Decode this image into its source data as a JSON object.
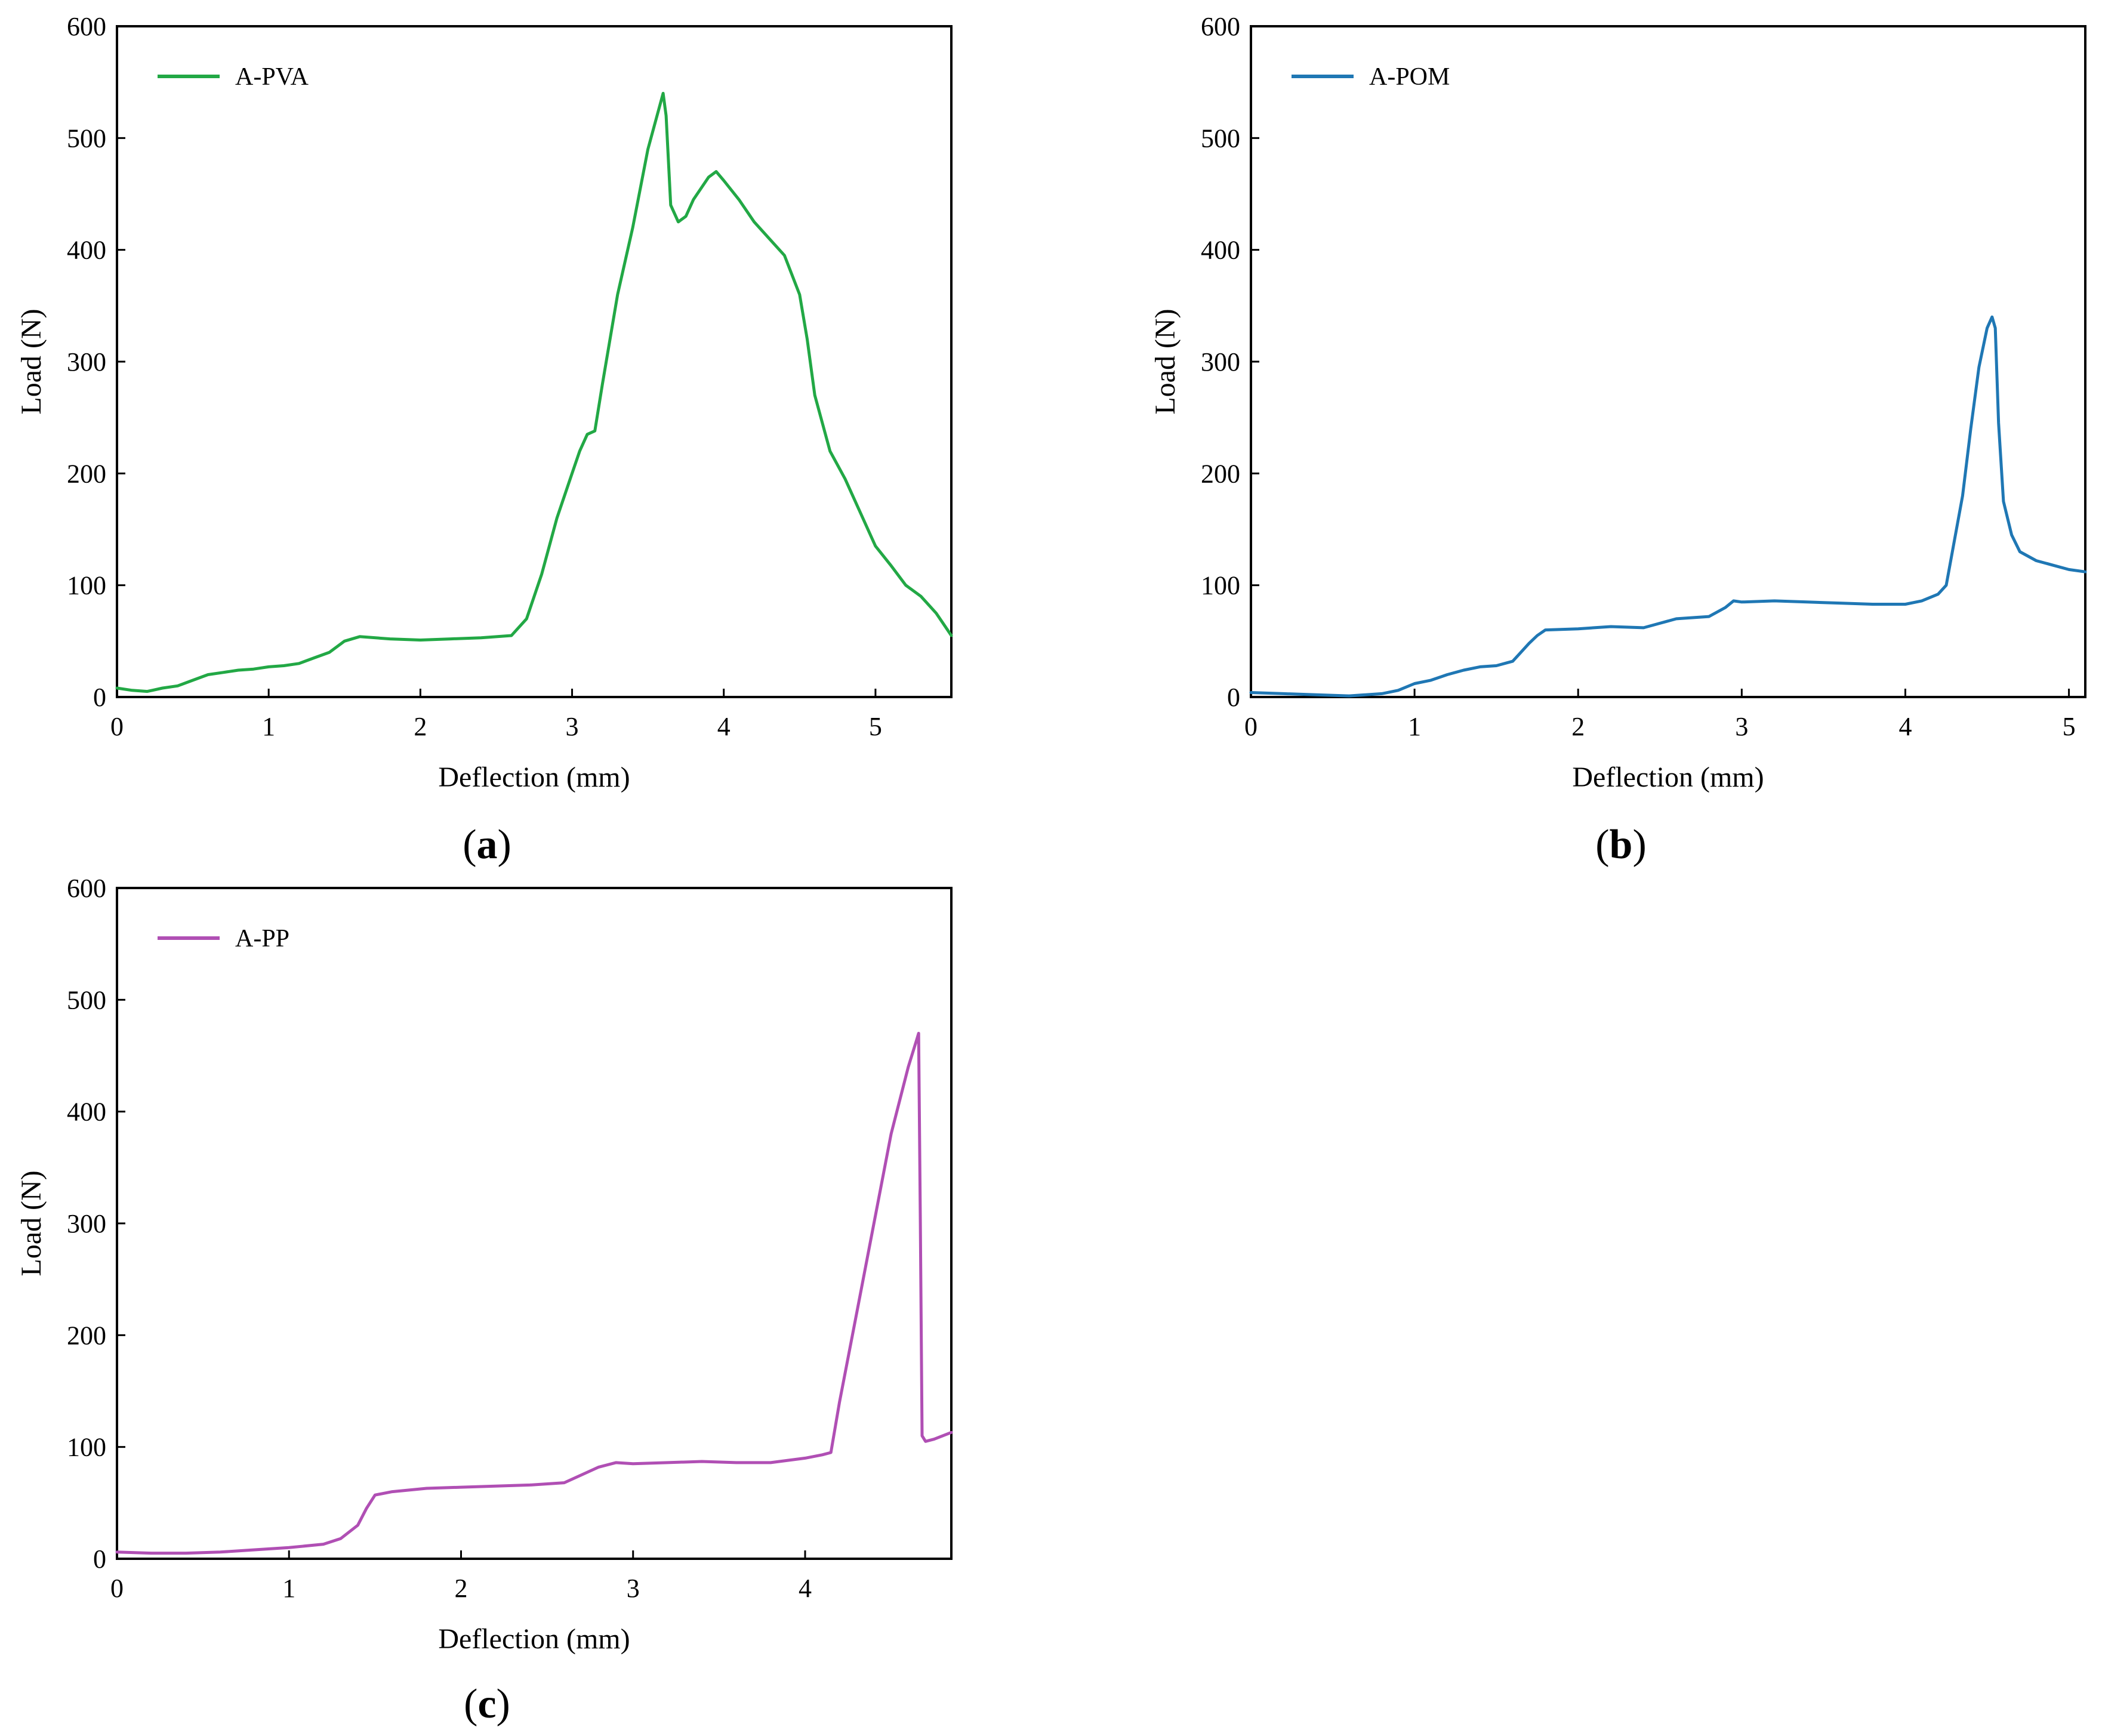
{
  "chart_data": [
    {
      "type": "line",
      "panel_label": "a",
      "xlabel": "Deflection (mm)",
      "ylabel": "Load (N)",
      "xlim": [
        0,
        5.5
      ],
      "ylim": [
        0,
        600
      ],
      "xticks": [
        "0",
        "1",
        "2",
        "3",
        "4",
        "5"
      ],
      "yticks": [
        "0",
        "100",
        "200",
        "300",
        "400",
        "500",
        "600"
      ],
      "grid": false,
      "legend_position": "top-left",
      "series": [
        {
          "name": "A-PVA",
          "color": "#22a845",
          "x": [
            0,
            0.1,
            0.2,
            0.3,
            0.4,
            0.5,
            0.6,
            0.7,
            0.8,
            0.9,
            1.0,
            1.1,
            1.2,
            1.3,
            1.4,
            1.5,
            1.6,
            1.8,
            2.0,
            2.2,
            2.4,
            2.6,
            2.7,
            2.8,
            2.9,
            3.0,
            3.05,
            3.1,
            3.15,
            3.2,
            3.3,
            3.4,
            3.5,
            3.58,
            3.6,
            3.62,
            3.65,
            3.7,
            3.75,
            3.8,
            3.9,
            3.95,
            4.0,
            4.1,
            4.2,
            4.3,
            4.4,
            4.5,
            4.55,
            4.6,
            4.7,
            4.8,
            4.9,
            5.0,
            5.1,
            5.2,
            5.3,
            5.4,
            5.45,
            5.5
          ],
          "y": [
            8,
            6,
            5,
            8,
            10,
            15,
            20,
            22,
            24,
            25,
            27,
            28,
            30,
            35,
            40,
            50,
            54,
            52,
            51,
            52,
            53,
            55,
            70,
            110,
            160,
            200,
            220,
            235,
            238,
            280,
            360,
            420,
            490,
            530,
            540,
            520,
            440,
            425,
            430,
            445,
            465,
            470,
            462,
            445,
            425,
            410,
            395,
            360,
            320,
            270,
            220,
            195,
            165,
            135,
            118,
            100,
            90,
            75,
            65,
            55
          ]
        }
      ]
    },
    {
      "type": "line",
      "panel_label": "b",
      "xlabel": "Deflection (mm)",
      "ylabel": "Load (N)",
      "xlim": [
        0,
        5.1
      ],
      "ylim": [
        0,
        600
      ],
      "xticks": [
        "0",
        "1",
        "2",
        "3",
        "4",
        "5"
      ],
      "yticks": [
        "0",
        "100",
        "200",
        "300",
        "400",
        "500",
        "600"
      ],
      "grid": false,
      "legend_position": "top-left",
      "series": [
        {
          "name": "A-POM",
          "color": "#1f77b4",
          "x": [
            0,
            0.2,
            0.4,
            0.6,
            0.8,
            0.9,
            1.0,
            1.1,
            1.2,
            1.3,
            1.4,
            1.5,
            1.6,
            1.7,
            1.75,
            1.8,
            2.0,
            2.2,
            2.4,
            2.5,
            2.6,
            2.8,
            2.9,
            2.95,
            3.0,
            3.2,
            3.4,
            3.6,
            3.8,
            4.0,
            4.1,
            4.2,
            4.25,
            4.3,
            4.35,
            4.4,
            4.45,
            4.5,
            4.53,
            4.55,
            4.57,
            4.6,
            4.65,
            4.7,
            4.8,
            4.9,
            5.0,
            5.1
          ],
          "y": [
            4,
            3,
            2,
            1,
            3,
            6,
            12,
            15,
            20,
            24,
            27,
            28,
            32,
            48,
            55,
            60,
            61,
            63,
            62,
            66,
            70,
            72,
            80,
            86,
            85,
            86,
            85,
            84,
            83,
            83,
            86,
            92,
            100,
            140,
            180,
            240,
            295,
            330,
            340,
            330,
            245,
            175,
            145,
            130,
            122,
            118,
            114,
            112
          ]
        }
      ]
    },
    {
      "type": "line",
      "panel_label": "c",
      "xlabel": "Deflection (mm)",
      "ylabel": "Load (N)",
      "xlim": [
        0,
        4.85
      ],
      "ylim": [
        0,
        600
      ],
      "xticks": [
        "0",
        "1",
        "2",
        "3",
        "4"
      ],
      "yticks": [
        "0",
        "100",
        "200",
        "300",
        "400",
        "500",
        "600"
      ],
      "grid": false,
      "legend_position": "top-left",
      "series": [
        {
          "name": "A-PP",
          "color": "#b04fb4",
          "x": [
            0,
            0.2,
            0.4,
            0.6,
            0.8,
            1.0,
            1.2,
            1.3,
            1.4,
            1.45,
            1.5,
            1.6,
            1.8,
            2.0,
            2.2,
            2.4,
            2.6,
            2.7,
            2.8,
            2.9,
            3.0,
            3.2,
            3.4,
            3.6,
            3.8,
            4.0,
            4.1,
            4.15,
            4.2,
            4.3,
            4.4,
            4.5,
            4.6,
            4.65,
            4.66,
            4.67,
            4.68,
            4.7,
            4.75,
            4.8,
            4.85
          ],
          "y": [
            6,
            5,
            5,
            6,
            8,
            10,
            13,
            18,
            30,
            45,
            57,
            60,
            63,
            64,
            65,
            66,
            68,
            75,
            82,
            86,
            85,
            86,
            87,
            86,
            86,
            90,
            93,
            95,
            140,
            220,
            300,
            380,
            440,
            465,
            470,
            300,
            110,
            105,
            107,
            110,
            113
          ]
        }
      ]
    }
  ]
}
